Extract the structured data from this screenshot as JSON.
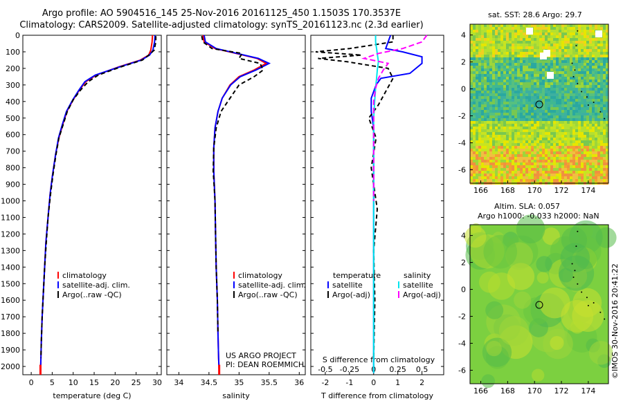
{
  "header": {
    "line1": "Argo profile: AO 5904516_145 25-Nov-2016 20161125_450 1.1503S 170.3537E",
    "line2": "Climatology: CARS2009. Satellite-adjusted climatology: synTS_20161123.nc (2.3d earlier)"
  },
  "panels": {
    "temperature": {
      "xlabel": "temperature (deg C)",
      "xticks": [
        "0",
        "5",
        "10",
        "15",
        "20",
        "25",
        "30"
      ],
      "legend": [
        "climatology",
        "satellite-adj. clim.",
        "Argo(..raw -QC)"
      ]
    },
    "salinity": {
      "xlabel": "salinity",
      "xticks": [
        "34",
        "34.5",
        "35",
        "35.5",
        "36"
      ],
      "legend": [
        "climatology",
        "satellite-adj. clim.",
        "Argo(..raw -QC)"
      ],
      "credit1": "US ARGO PROJECT",
      "credit2": "PI: DEAN ROEMMICH"
    },
    "difference": {
      "xlabel": "T difference from climatology",
      "toplabel": "S difference from climatology",
      "xticks": [
        "-2",
        "-1",
        "0",
        "1",
        "2"
      ],
      "topticks": [
        "-0.5",
        "-0.25",
        "0",
        "0.25",
        "0.5"
      ],
      "legend_temp_title": "temperature",
      "legend_sal_title": "salinity",
      "legend_temp": [
        "satellite",
        "Argo(-adj)"
      ],
      "legend_sal": [
        "satellite",
        "Argo(-adj)"
      ]
    },
    "depth_ticks": [
      "0",
      "100",
      "200",
      "300",
      "400",
      "500",
      "600",
      "700",
      "800",
      "900",
      "1000",
      "1100",
      "1200",
      "1300",
      "1400",
      "1500",
      "1600",
      "1700",
      "1800",
      "1900",
      "2000"
    ]
  },
  "maps": {
    "sst_title": "sat. SST: 28.6 Argo: 29.7",
    "sla_title1": "Altim. SLA: 0.057",
    "sla_title2": "Argo h1000: -0.033 h2000: NaN",
    "xticks": [
      "166",
      "168",
      "170",
      "172",
      "174"
    ],
    "yticks": [
      "4",
      "2",
      "0",
      "-2",
      "-4",
      "-6"
    ],
    "argo_lon": 170.35,
    "argo_lat": -1.15
  },
  "footer": "©IMOS 30-Nov-2016 20:41:22",
  "colors": {
    "clim": "#ff0000",
    "sat": "#0000ff",
    "argo": "#000000",
    "sal_sat": "#00e5ee",
    "sal_argo": "#ff00ff"
  },
  "chart_data": [
    {
      "type": "line",
      "xlabel": "temperature (deg C)",
      "ylabel": "",
      "xlim": [
        -2,
        31
      ],
      "ylim": [
        2050,
        0
      ],
      "series": [
        {
          "name": "climatology",
          "x": [
            28.9,
            28.8,
            28.5,
            28.0,
            26.0,
            21.0,
            15.5,
            13.0,
            11.5,
            10.0,
            8.5,
            7.5,
            6.6,
            5.8,
            5.1,
            4.5,
            4.0,
            3.5,
            3.2,
            2.9,
            2.6,
            2.4,
            2.3,
            2.2
          ],
          "y": [
            0,
            40,
            90,
            120,
            150,
            190,
            240,
            280,
            330,
            390,
            460,
            540,
            620,
            720,
            840,
            960,
            1100,
            1250,
            1400,
            1550,
            1700,
            1850,
            1950,
            2040
          ]
        },
        {
          "name": "satellite-adj. clim.",
          "x": [
            29.5,
            29.4,
            29.0,
            28.2,
            26.2,
            21.2,
            15.3,
            12.8,
            11.4,
            9.9,
            8.4,
            7.4,
            6.5,
            5.8,
            5.1,
            4.5,
            4.0,
            3.5,
            3.2,
            2.9,
            2.6,
            2.4,
            2.3,
            2.2
          ],
          "y": [
            0,
            40,
            90,
            120,
            150,
            190,
            240,
            280,
            330,
            390,
            460,
            540,
            620,
            720,
            840,
            960,
            1100,
            1250,
            1400,
            1550,
            1700,
            1850,
            1950,
            2040
          ]
        },
        {
          "name": "Argo(..raw -QC)",
          "x": [
            29.7,
            29.7,
            29.3,
            28.0,
            26.5,
            21.5,
            16.0,
            13.6,
            11.8,
            10.0,
            8.6,
            7.6,
            6.6,
            5.9,
            5.2,
            4.6,
            4.0,
            3.6,
            3.2,
            2.9,
            2.6,
            2.4,
            2.3
          ],
          "y": [
            5,
            40,
            90,
            120,
            150,
            190,
            240,
            280,
            330,
            390,
            460,
            540,
            620,
            720,
            840,
            960,
            1100,
            1250,
            1400,
            1550,
            1700,
            1850,
            1950
          ]
        }
      ]
    },
    {
      "type": "line",
      "xlabel": "salinity",
      "ylabel": "",
      "xlim": [
        33.8,
        36.1
      ],
      "ylim": [
        2050,
        0
      ],
      "series": [
        {
          "name": "climatology",
          "x": [
            34.4,
            34.42,
            34.6,
            34.95,
            35.3,
            35.45,
            35.25,
            35.0,
            34.85,
            34.72,
            34.65,
            34.6,
            34.58,
            34.58,
            34.6,
            34.61,
            34.62,
            34.64,
            34.65,
            34.66,
            34.67
          ],
          "y": [
            0,
            40,
            80,
            110,
            140,
            170,
            210,
            250,
            300,
            380,
            460,
            560,
            680,
            820,
            1000,
            1200,
            1400,
            1600,
            1800,
            1950,
            2040
          ]
        },
        {
          "name": "satellite-adj. clim.",
          "x": [
            34.42,
            34.44,
            34.62,
            34.97,
            35.32,
            35.5,
            35.28,
            35.02,
            34.86,
            34.72,
            34.65,
            34.6,
            34.58,
            34.58,
            34.6,
            34.61,
            34.62,
            34.64,
            34.65,
            34.66,
            34.67
          ],
          "y": [
            0,
            40,
            80,
            110,
            140,
            170,
            210,
            250,
            300,
            380,
            460,
            560,
            680,
            820,
            1000,
            1200,
            1400,
            1600,
            1800,
            1950,
            2040
          ]
        },
        {
          "name": "Argo(..raw -QC)",
          "x": [
            34.38,
            34.4,
            34.55,
            35.05,
            35.0,
            35.35,
            35.4,
            35.25,
            35.0,
            34.85,
            34.7,
            34.62,
            34.58,
            34.57,
            34.6,
            34.61,
            34.62,
            34.64,
            34.65
          ],
          "y": [
            5,
            40,
            80,
            110,
            140,
            170,
            210,
            250,
            300,
            380,
            460,
            560,
            680,
            820,
            1000,
            1200,
            1400,
            1600,
            1800
          ]
        }
      ]
    },
    {
      "type": "line",
      "xlabel": "T difference from climatology",
      "ylabel": "",
      "xlim": [
        -2.6,
        2.9
      ],
      "ylim": [
        2050,
        0
      ],
      "series": [
        {
          "name": "temperature satellite",
          "x": [
            0.7,
            0.6,
            0.5,
            1.2,
            2.0,
            2.0,
            1.5,
            0.3,
            0.1,
            -0.1,
            -0.1,
            0,
            0,
            0,
            0,
            0,
            0,
            0
          ],
          "y": [
            0,
            40,
            80,
            100,
            130,
            170,
            230,
            260,
            300,
            380,
            460,
            560,
            700,
            900,
            1200,
            1500,
            1800,
            2040
          ]
        },
        {
          "name": "temperature Argo(-adj)",
          "x": [
            0.8,
            0.8,
            -1.0,
            -2.4,
            -0.5,
            -2.3,
            -1.1,
            0.6,
            0.8,
            0.5,
            0.2,
            -0.2,
            0.1,
            -0.1,
            0.15,
            0,
            0.05,
            0
          ],
          "y": [
            0,
            40,
            80,
            100,
            120,
            140,
            160,
            200,
            260,
            340,
            420,
            500,
            620,
            800,
            1050,
            1300,
            1600,
            1950
          ]
        },
        {
          "name": "salinity satellite",
          "x": [
            0.02,
            0.02,
            0.03,
            0.04,
            0.05,
            0.04,
            0.03,
            0.02,
            0.01,
            0,
            0,
            0,
            0,
            0
          ],
          "y": [
            0,
            40,
            80,
            120,
            160,
            200,
            260,
            320,
            400,
            500,
            700,
            1000,
            1500,
            2040
          ]
        },
        {
          "name": "salinity Argo(-adj)",
          "x": [
            0.55,
            0.5,
            0.3,
            0.05,
            -0.1,
            0.15,
            0.1,
            0.05,
            0.02,
            0,
            0,
            0
          ],
          "y": [
            0,
            40,
            80,
            110,
            140,
            170,
            210,
            260,
            320,
            400,
            600,
            1000
          ]
        }
      ]
    }
  ]
}
